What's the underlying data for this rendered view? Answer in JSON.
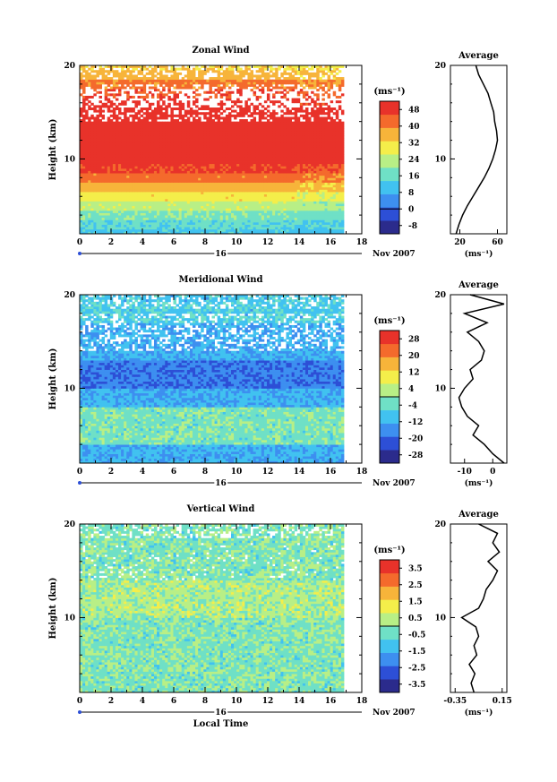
{
  "chart_data": [
    {
      "type": "heatmap",
      "title": "Zonal Wind",
      "ylabel": "Height (km)",
      "ylim": [
        2,
        20
      ],
      "xlim": [
        0,
        18
      ],
      "x_ticks": [
        "0",
        "2",
        "4",
        "6",
        "8",
        "10",
        "12",
        "14",
        "16",
        "18"
      ],
      "y_ticks": [
        "10",
        "20"
      ],
      "date_label": "16",
      "date_suffix": "Nov 2007",
      "colorbar": {
        "unit": "(ms⁻¹)",
        "ticks": [
          "48",
          "40",
          "32",
          "24",
          "16",
          "8",
          "0",
          "-8"
        ],
        "min": -12,
        "max": 52
      },
      "profile": {
        "title": "Average",
        "unit": "(ms⁻¹)",
        "x_ticks": [
          "20",
          "60"
        ],
        "xlim": [
          10,
          70
        ],
        "heights": [
          2,
          3,
          4,
          5,
          6,
          7,
          8,
          9,
          10,
          11,
          12,
          13,
          14,
          15,
          16,
          17,
          18,
          19,
          20
        ],
        "values": [
          16,
          19,
          23,
          28,
          34,
          40,
          46,
          51,
          55,
          58,
          60,
          59,
          57,
          56,
          53,
          50,
          45,
          40,
          37
        ]
      }
    },
    {
      "type": "heatmap",
      "title": "Meridional Wind",
      "ylabel": "Height (km)",
      "ylim": [
        2,
        20
      ],
      "xlim": [
        0,
        18
      ],
      "x_ticks": [
        "0",
        "2",
        "4",
        "6",
        "8",
        "10",
        "12",
        "14",
        "16",
        "18"
      ],
      "y_ticks": [
        "10",
        "20"
      ],
      "date_label": "16",
      "date_suffix": "Nov 2007",
      "colorbar": {
        "unit": "(ms⁻¹)",
        "ticks": [
          "28",
          "20",
          "12",
          "4",
          "-4",
          "-12",
          "-20",
          "-28"
        ],
        "min": -32,
        "max": 32
      },
      "profile": {
        "title": "Average",
        "unit": "(ms⁻¹)",
        "x_ticks": [
          "-10",
          "0"
        ],
        "xlim": [
          -15,
          5
        ],
        "heights": [
          2,
          3,
          4,
          5,
          6,
          7,
          8,
          9,
          10,
          11,
          12,
          13,
          14,
          15,
          16,
          17,
          18,
          19,
          20
        ],
        "values": [
          4,
          0,
          -3,
          -7,
          -5,
          -9,
          -11,
          -12,
          -10,
          -7,
          -8,
          -4,
          -3,
          -5,
          -9,
          -2,
          -10,
          4,
          -8
        ]
      }
    },
    {
      "type": "heatmap",
      "title": "Vertical Wind",
      "ylabel": "Height (km)",
      "xlabel": "Local Time",
      "ylim": [
        2,
        20
      ],
      "xlim": [
        0,
        18
      ],
      "x_ticks": [
        "0",
        "2",
        "4",
        "6",
        "8",
        "10",
        "12",
        "14",
        "16",
        "18"
      ],
      "y_ticks": [
        "10",
        "20"
      ],
      "date_label": "16",
      "date_suffix": "Nov 2007",
      "colorbar": {
        "unit": "(ms⁻¹)",
        "ticks": [
          "3.5",
          "2.5",
          "1.5",
          "0.5",
          "-0.5",
          "-1.5",
          "-2.5",
          "-3.5"
        ],
        "min": -4,
        "max": 4
      },
      "profile": {
        "title": "Average",
        "unit": "(ms⁻¹)",
        "x_ticks": [
          "-0.35",
          "0.15"
        ],
        "xlim": [
          -0.4,
          0.2
        ],
        "heights": [
          2,
          3,
          4,
          5,
          6,
          7,
          8,
          9,
          10,
          11,
          12,
          13,
          14,
          15,
          16,
          17,
          18,
          19,
          20
        ],
        "values": [
          -0.15,
          -0.18,
          -0.14,
          -0.2,
          -0.12,
          -0.15,
          -0.1,
          -0.13,
          -0.28,
          -0.1,
          -0.05,
          -0.02,
          0.05,
          0.1,
          0.0,
          0.12,
          0.05,
          0.1,
          -0.1
        ]
      }
    }
  ],
  "colors": {
    "background": "#ffffff",
    "axis": "#000000",
    "scale": [
      "#2b2b8c",
      "#2d4fd6",
      "#3d8ff0",
      "#41c2f0",
      "#6fe0c6",
      "#b8ef86",
      "#f4ee4a",
      "#f7b43a",
      "#f46a2c",
      "#e8322a"
    ]
  }
}
